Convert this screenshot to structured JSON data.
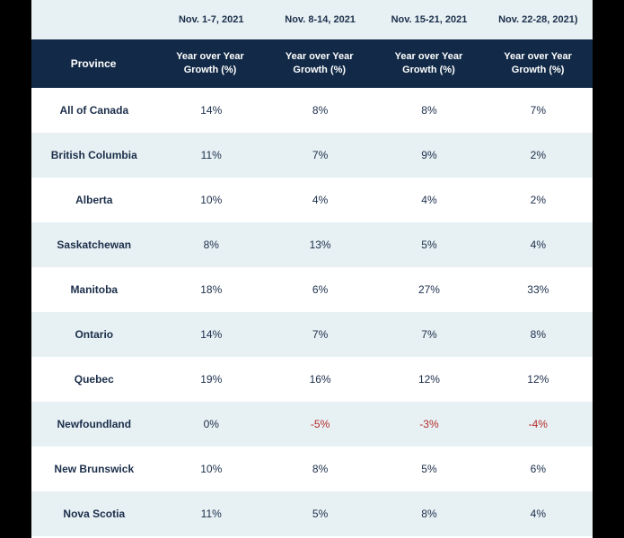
{
  "table": {
    "type": "table",
    "background_color": "#ffffff",
    "alt_row_color": "#e7f0f3",
    "header_bg": "#122a47",
    "header_text_color": "#ffffff",
    "text_color": "#1b2e4a",
    "negative_color": "#b42c2c",
    "date_headers": [
      "Nov. 1-7, 2021",
      "Nov. 8-14, 2021",
      "Nov. 15-21, 2021",
      "Nov. 22-28, 2021)"
    ],
    "col_headers": {
      "province": "Province",
      "growth": "Year over Year Growth (%)"
    },
    "rows": [
      {
        "province": "All of Canada",
        "v": [
          "14%",
          "8%",
          "8%",
          "7%"
        ],
        "neg": [
          false,
          false,
          false,
          false
        ]
      },
      {
        "province": "British Columbia",
        "v": [
          "11%",
          "7%",
          "9%",
          "2%"
        ],
        "neg": [
          false,
          false,
          false,
          false
        ]
      },
      {
        "province": "Alberta",
        "v": [
          "10%",
          "4%",
          "4%",
          "2%"
        ],
        "neg": [
          false,
          false,
          false,
          false
        ]
      },
      {
        "province": "Saskatchewan",
        "v": [
          "8%",
          "13%",
          "5%",
          "4%"
        ],
        "neg": [
          false,
          false,
          false,
          false
        ]
      },
      {
        "province": "Manitoba",
        "v": [
          "18%",
          "6%",
          "27%",
          "33%"
        ],
        "neg": [
          false,
          false,
          false,
          false
        ]
      },
      {
        "province": "Ontario",
        "v": [
          "14%",
          "7%",
          "7%",
          "8%"
        ],
        "neg": [
          false,
          false,
          false,
          false
        ]
      },
      {
        "province": "Quebec",
        "v": [
          "19%",
          "16%",
          "12%",
          "12%"
        ],
        "neg": [
          false,
          false,
          false,
          false
        ]
      },
      {
        "province": "Newfoundland",
        "v": [
          "0%",
          "-5%",
          "-3%",
          "-4%"
        ],
        "neg": [
          false,
          true,
          true,
          true
        ]
      },
      {
        "province": "New Brunswick",
        "v": [
          "10%",
          "8%",
          "5%",
          "6%"
        ],
        "neg": [
          false,
          false,
          false,
          false
        ]
      },
      {
        "province": "Nova Scotia",
        "v": [
          "11%",
          "5%",
          "8%",
          "4%"
        ],
        "neg": [
          false,
          false,
          false,
          false
        ]
      }
    ]
  }
}
